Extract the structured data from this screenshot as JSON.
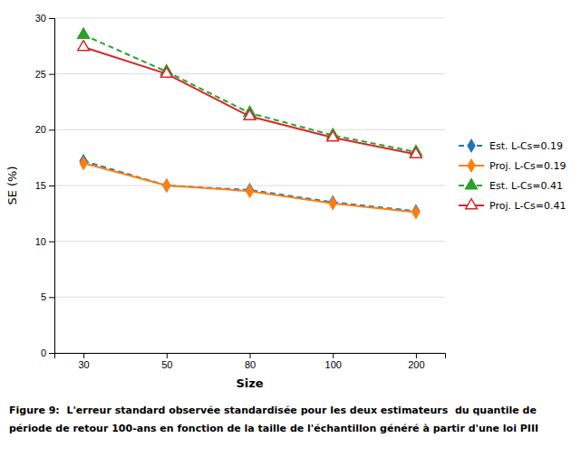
{
  "chart_data": {
    "type": "line",
    "x_label": "Size",
    "y_label": "SE (%)",
    "categories": [
      "30",
      "50",
      "80",
      "100",
      "200"
    ],
    "series": [
      {
        "name": "Est. L-Cs=0.19",
        "values": [
          17.2,
          15.0,
          14.6,
          13.5,
          12.7
        ],
        "marker": "diamond",
        "line_style": "dashed"
      },
      {
        "name": "Proj. L-Cs=0.19",
        "values": [
          17.0,
          15.0,
          14.5,
          13.4,
          12.6
        ],
        "marker": "diamond",
        "line_style": "solid"
      },
      {
        "name": "Est. L-Cs=0.41",
        "values": [
          28.5,
          25.2,
          21.5,
          19.5,
          18.0
        ],
        "marker": "triangle",
        "line_style": "dashed"
      },
      {
        "name": "Proj. L-Cs=0.41",
        "values": [
          27.4,
          25.0,
          21.2,
          19.3,
          17.8
        ],
        "marker": "triangle-open",
        "line_style": "solid"
      }
    ],
    "ylim": [
      0,
      30
    ],
    "yticks": [
      0,
      5,
      10,
      15,
      20,
      25,
      30
    ],
    "grid": true,
    "legend": "right",
    "annotations": [
      "Figure 9:  L'erreur standard observée standardisée pour les deux estimateurs  du quantile de",
      "période de retour 100-ans en fonction de la taille de l'échantillon généré à partir d'une loi PIII"
    ]
  }
}
